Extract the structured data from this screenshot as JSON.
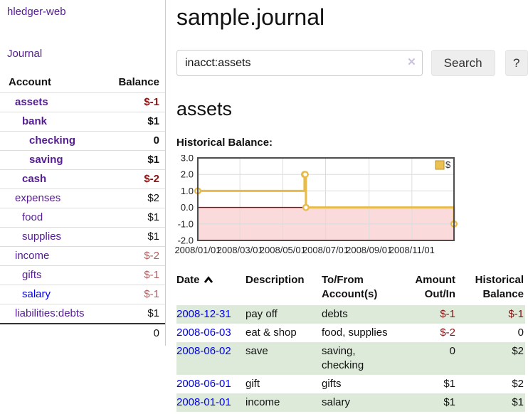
{
  "app": {
    "title": "hledger-web"
  },
  "sidebar": {
    "journal_link": "Journal",
    "table": {
      "account_header": "Account",
      "balance_header": "Balance",
      "rows": [
        {
          "account": "assets",
          "balance": "$-1",
          "indent": 1,
          "selected": true
        },
        {
          "account": "bank",
          "balance": "$1",
          "indent": 2,
          "selected": true
        },
        {
          "account": "checking",
          "balance": "0",
          "indent": 3,
          "selected": true
        },
        {
          "account": "saving",
          "balance": "$1",
          "indent": 3,
          "selected": true
        },
        {
          "account": "cash",
          "balance": "$-2",
          "indent": 2,
          "selected": true
        },
        {
          "account": "expenses",
          "balance": "$2",
          "indent": 1,
          "selected": false
        },
        {
          "account": "food",
          "balance": "$1",
          "indent": 2,
          "selected": false
        },
        {
          "account": "supplies",
          "balance": "$1",
          "indent": 2,
          "selected": false
        },
        {
          "account": "income",
          "balance": "$-2",
          "indent": 1,
          "selected": false
        },
        {
          "account": "gifts",
          "balance": "$-1",
          "indent": 2,
          "selected": false
        },
        {
          "account": "salary",
          "balance": "$-1",
          "indent": 2,
          "selected": false,
          "unvisited": true
        },
        {
          "account": "liabilities:debts",
          "balance": "$1",
          "indent": 1,
          "selected": false
        }
      ],
      "total": "0"
    }
  },
  "header": {
    "title": "sample.journal"
  },
  "search": {
    "value": "inacct:assets",
    "clear_icon": "✕",
    "button_label": "Search",
    "help_label": "?"
  },
  "account_page": {
    "title": "assets",
    "chart_label": "Historical Balance:"
  },
  "chart_data": {
    "type": "line",
    "title": "Historical Balance of assets",
    "step": true,
    "series": [
      {
        "name": "$",
        "points": [
          [
            "2008-01-01",
            1
          ],
          [
            "2008-06-01",
            2
          ],
          [
            "2008-06-02",
            2
          ],
          [
            "2008-06-03",
            0
          ],
          [
            "2008-12-31",
            -1
          ]
        ]
      }
    ],
    "xrange": [
      "2008-01-01",
      "2008-12-31"
    ],
    "ylim": [
      -2,
      3
    ],
    "yticks": [
      "3.0",
      "2.0",
      "1.0",
      "0.0",
      "-1.0",
      "-2.0"
    ],
    "xticks": [
      "2008/01/01",
      "2008/03/01",
      "2008/05/01",
      "2008/07/01",
      "2008/09/01",
      "2008/11/01"
    ],
    "legend": "$",
    "legend_position": "top-right",
    "grid": true,
    "line_color": "#e7ba4a",
    "negative_region_color": "#fadada",
    "zero_line_color": "#a00000"
  },
  "register": {
    "columns": [
      {
        "label": "Date",
        "sort": "ascending"
      },
      {
        "label": "Description"
      },
      {
        "label": "To/From Account(s)"
      },
      {
        "label": "Amount Out/In",
        "align": "right"
      },
      {
        "label": "Historical Balance",
        "align": "right"
      }
    ],
    "rows": [
      {
        "date": "2008-12-31",
        "description": "pay off",
        "accounts": "debts",
        "amount": "$-1",
        "balance": "$-1"
      },
      {
        "date": "2008-06-03",
        "description": "eat & shop",
        "accounts": "food, supplies",
        "amount": "$-2",
        "balance": "0"
      },
      {
        "date": "2008-06-02",
        "description": "save",
        "accounts": "saving, checking",
        "amount": "0",
        "balance": "$2"
      },
      {
        "date": "2008-06-01",
        "description": "gift",
        "accounts": "gifts",
        "amount": "$1",
        "balance": "$2"
      },
      {
        "date": "2008-01-01",
        "description": "income",
        "accounts": "salary",
        "amount": "$1",
        "balance": "$1"
      }
    ]
  }
}
